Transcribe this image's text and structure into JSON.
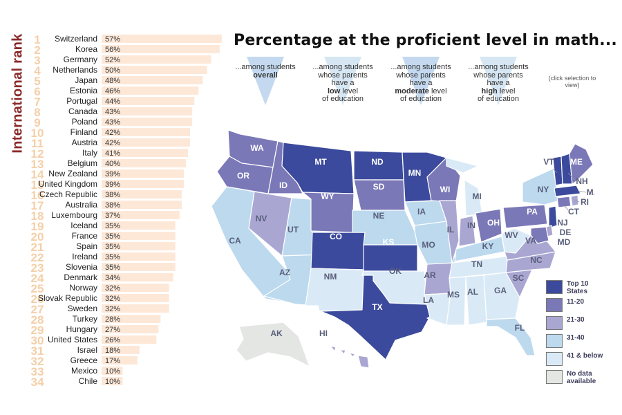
{
  "title": "Percentage at the proficient level in math...",
  "rank_axis_title": "International rank",
  "selectors": [
    {
      "line1": "...among students",
      "line2": "",
      "line3": "",
      "bold": "overall",
      "rest": ""
    },
    {
      "line1": "...among students",
      "line2": "whose parents",
      "line3": "have a",
      "bold": "low",
      "rest": " level",
      "tail": "of education"
    },
    {
      "line1": "...among students",
      "line2": "whose parents",
      "line3": "have a",
      "bold": "moderate",
      "rest": " level",
      "tail": "of education"
    },
    {
      "line1": "...among students",
      "line2": "whose parents",
      "line3": "have a",
      "bold": "high",
      "rest": " level",
      "tail": "of education"
    }
  ],
  "click_hint": "(click selection to view)",
  "colors": {
    "bar": "#fde8d8",
    "rank_number": "#f4cfa8",
    "top10": "#3b4a9c",
    "r11_20": "#7b78b8",
    "r21_30": "#a9a7d2",
    "r31_40": "#bcd9ee",
    "r41_below": "#d9eaf6",
    "no_data": "#e4e6e4"
  },
  "legend": [
    {
      "label": "Top 10 States",
      "color_key": "top10"
    },
    {
      "label": "11-20",
      "color_key": "r11_20"
    },
    {
      "label": "21-30",
      "color_key": "r21_30"
    },
    {
      "label": "31-40",
      "color_key": "r31_40"
    },
    {
      "label": "41 & below",
      "color_key": "r41_below"
    },
    {
      "label": "No data available",
      "color_key": "no_data"
    }
  ],
  "chart_data": [
    {
      "type": "bar",
      "orientation": "horizontal",
      "ylabel": "International rank",
      "ranks": [
        1,
        2,
        3,
        4,
        5,
        6,
        7,
        8,
        9,
        10,
        11,
        12,
        13,
        14,
        15,
        16,
        17,
        18,
        19,
        20,
        21,
        22,
        23,
        24,
        25,
        26,
        27,
        28,
        29,
        30,
        31,
        32,
        33,
        34
      ],
      "categories": [
        "Switzerland",
        "Korea",
        "Germany",
        "Netherlands",
        "Japan",
        "Estonia",
        "Portugal",
        "Canada",
        "Poland",
        "Finland",
        "Austria",
        "Italy",
        "Belgium",
        "New Zealand",
        "United Kingdom",
        "Czech Republic",
        "Australia",
        "Luxembourg",
        "Iceland",
        "France",
        "Spain",
        "Ireland",
        "Slovenia",
        "Denmark",
        "Norway",
        "Slovak Republic",
        "Sweden",
        "Turkey",
        "Hungary",
        "United States",
        "Israel",
        "Greece",
        "Mexico",
        "Chile"
      ],
      "values": [
        57,
        56,
        52,
        50,
        48,
        46,
        44,
        43,
        43,
        42,
        42,
        41,
        40,
        39,
        39,
        38,
        38,
        37,
        35,
        35,
        35,
        35,
        35,
        34,
        32,
        32,
        32,
        28,
        27,
        26,
        18,
        17,
        10,
        10
      ],
      "value_suffix": "%"
    },
    {
      "type": "choropleth",
      "states": [
        {
          "abbr": "WA",
          "tier": "11-20"
        },
        {
          "abbr": "OR",
          "tier": "11-20"
        },
        {
          "abbr": "CA",
          "tier": "31-40"
        },
        {
          "abbr": "ID",
          "tier": "11-20"
        },
        {
          "abbr": "NV",
          "tier": "21-30"
        },
        {
          "abbr": "UT",
          "tier": "31-40"
        },
        {
          "abbr": "AZ",
          "tier": "31-40"
        },
        {
          "abbr": "MT",
          "tier": "Top 10 States"
        },
        {
          "abbr": "WY",
          "tier": "11-20"
        },
        {
          "abbr": "CO",
          "tier": "Top 10 States"
        },
        {
          "abbr": "NM",
          "tier": "41 & below"
        },
        {
          "abbr": "ND",
          "tier": "Top 10 States"
        },
        {
          "abbr": "SD",
          "tier": "11-20"
        },
        {
          "abbr": "NE",
          "tier": "31-40"
        },
        {
          "abbr": "KS",
          "tier": "Top 10 States"
        },
        {
          "abbr": "OK",
          "tier": "41 & below"
        },
        {
          "abbr": "TX",
          "tier": "Top 10 States"
        },
        {
          "abbr": "MN",
          "tier": "Top 10 States"
        },
        {
          "abbr": "IA",
          "tier": "31-40"
        },
        {
          "abbr": "MO",
          "tier": "31-40"
        },
        {
          "abbr": "AR",
          "tier": "21-30"
        },
        {
          "abbr": "LA",
          "tier": "41 & below"
        },
        {
          "abbr": "WI",
          "tier": "11-20"
        },
        {
          "abbr": "IL",
          "tier": "21-30"
        },
        {
          "abbr": "MI",
          "tier": "41 & below"
        },
        {
          "abbr": "IN",
          "tier": "21-30"
        },
        {
          "abbr": "OH",
          "tier": "11-20"
        },
        {
          "abbr": "KY",
          "tier": "31-40"
        },
        {
          "abbr": "TN",
          "tier": "41 & below"
        },
        {
          "abbr": "MS",
          "tier": "41 & below"
        },
        {
          "abbr": "AL",
          "tier": "41 & below"
        },
        {
          "abbr": "GA",
          "tier": "41 & below"
        },
        {
          "abbr": "FL",
          "tier": "31-40"
        },
        {
          "abbr": "SC",
          "tier": "21-30"
        },
        {
          "abbr": "NC",
          "tier": "21-30"
        },
        {
          "abbr": "VA",
          "tier": "21-30"
        },
        {
          "abbr": "WV",
          "tier": "41 & below"
        },
        {
          "abbr": "PA",
          "tier": "11-20"
        },
        {
          "abbr": "NY",
          "tier": "31-40"
        },
        {
          "abbr": "VT",
          "tier": "Top 10 States"
        },
        {
          "abbr": "NH",
          "tier": "Top 10 States"
        },
        {
          "abbr": "ME",
          "tier": "11-20"
        },
        {
          "abbr": "MA",
          "tier": "Top 10 States"
        },
        {
          "abbr": "CT",
          "tier": "11-20"
        },
        {
          "abbr": "RI",
          "tier": "21-30"
        },
        {
          "abbr": "NJ",
          "tier": "Top 10 States"
        },
        {
          "abbr": "DE",
          "tier": "21-30"
        },
        {
          "abbr": "MD",
          "tier": "11-20"
        },
        {
          "abbr": "AK",
          "tier": "No data available"
        },
        {
          "abbr": "HI",
          "tier": "21-30"
        }
      ]
    }
  ]
}
